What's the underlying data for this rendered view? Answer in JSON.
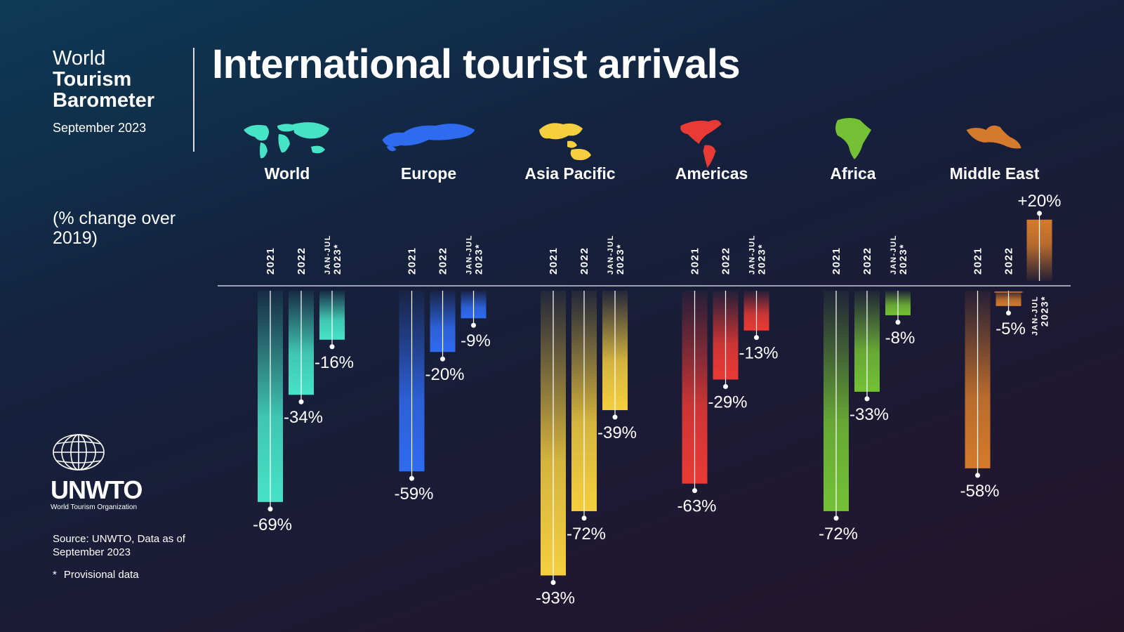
{
  "header": {
    "brand_line1": "World",
    "brand_line2": "Tourism",
    "brand_line3": "Barometer",
    "date": "September 2023",
    "title": "International tourist arrivals",
    "subtitle": "(% change over 2019)"
  },
  "logo": {
    "text": "UNWTO",
    "subtitle": "World Tourism Organization",
    "icon": "globe-icon"
  },
  "footer": {
    "source": "Source: UNWTO, Data as of September 2023",
    "note_marker": "*",
    "note": "Provisional data"
  },
  "chart_data": {
    "type": "bar",
    "title": "International tourist arrivals",
    "ylabel": "(% change over 2019)",
    "ylim": [
      -100,
      25
    ],
    "categories": [
      "2021",
      "2022",
      "JAN-JUL 2023*"
    ],
    "groups": [
      {
        "name": "World",
        "icon": "world-map-icon",
        "color": "#46e3c7",
        "values": [
          -69,
          -34,
          -16
        ],
        "labels": [
          "-69%",
          "-34%",
          "-16%"
        ]
      },
      {
        "name": "Europe",
        "icon": "europe-map-icon",
        "color": "#2f6bf0",
        "values": [
          -59,
          -20,
          -9
        ],
        "labels": [
          "-59%",
          "-20%",
          "-9%"
        ]
      },
      {
        "name": "Asia Pacific",
        "icon": "asia-pacific-map-icon",
        "color": "#f5cf3f",
        "values": [
          -93,
          -72,
          -39
        ],
        "labels": [
          "-93%",
          "-72%",
          "-39%"
        ]
      },
      {
        "name": "Americas",
        "icon": "americas-map-icon",
        "color": "#ea3a35",
        "values": [
          -63,
          -29,
          -13
        ],
        "labels": [
          "-63%",
          "-29%",
          "-13%"
        ]
      },
      {
        "name": "Africa",
        "icon": "africa-map-icon",
        "color": "#74c135",
        "values": [
          -72,
          -33,
          -8
        ],
        "labels": [
          "-72%",
          "-33%",
          "-8%"
        ]
      },
      {
        "name": "Middle East",
        "icon": "middle-east-map-icon",
        "color": "#d47a2c",
        "values": [
          -58,
          -5,
          20
        ],
        "labels": [
          "-58%",
          "-5%",
          "+20%"
        ]
      }
    ]
  }
}
